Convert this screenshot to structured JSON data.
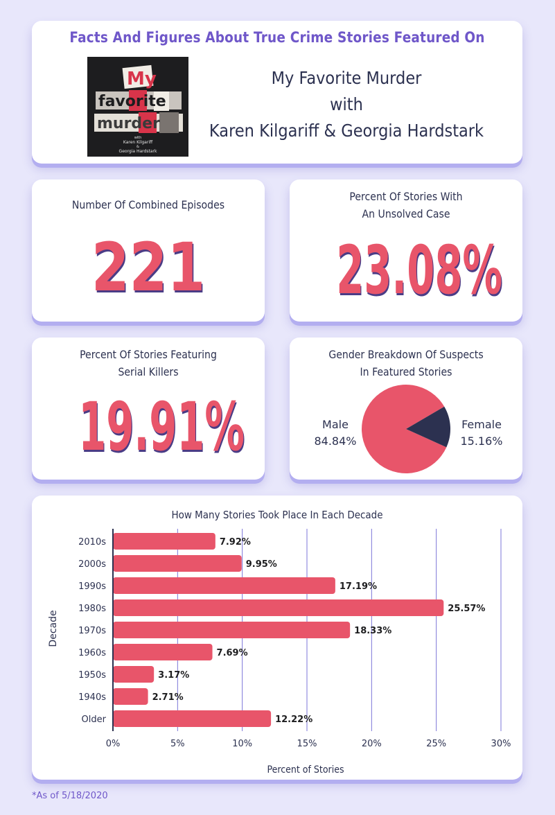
{
  "header": {
    "title": "Facts And Figures About True Crime Stories Featured On",
    "podcast_name": "My Favorite Murder",
    "with_text": "with",
    "hosts": "Karen Kilgariff & Georgia Hardstark",
    "logo": {
      "line1": "My",
      "line2": "favorite",
      "line3": "murder",
      "small_with": "with",
      "small_host1": "Karen Kilgariff",
      "small_amp": "&",
      "small_host2": "Georgia Hardstark"
    }
  },
  "stats": {
    "episodes": {
      "label": "Number Of Combined Episodes",
      "value": "221"
    },
    "unsolved": {
      "label_line1": "Percent Of Stories With",
      "label_line2": "An Unsolved Case",
      "value": "23.08%"
    },
    "serial": {
      "label_line1": "Percent Of Stories Featuring",
      "label_line2": "Serial Killers",
      "value": "19.91%"
    }
  },
  "gender": {
    "title_line1": "Gender Breakdown Of Suspects",
    "title_line2": "In Featured Stories",
    "male": {
      "name": "Male",
      "label": "84.84%",
      "value": 84.84
    },
    "female": {
      "name": "Female",
      "label": "15.16%",
      "value": 15.16
    },
    "colors": {
      "male": "#e8556a",
      "female": "#2c3150"
    }
  },
  "chart_data": {
    "type": "bar",
    "orientation": "horizontal",
    "title": "How Many Stories Took Place In Each Decade",
    "xlabel": "Percent of Stories",
    "ylabel": "Decade",
    "categories": [
      "2010s",
      "2000s",
      "1990s",
      "1980s",
      "1970s",
      "1960s",
      "1950s",
      "1940s",
      "Older"
    ],
    "values": [
      7.92,
      9.95,
      17.19,
      25.57,
      18.33,
      7.69,
      3.17,
      2.71,
      12.22
    ],
    "value_labels": [
      "7.92%",
      "9.95%",
      "17.19%",
      "25.57%",
      "18.33%",
      "7.69%",
      "3.17%",
      "2.71%",
      "12.22%"
    ],
    "xlim": [
      0,
      30
    ],
    "xticks": [
      0,
      5,
      10,
      15,
      20,
      25,
      30
    ],
    "xtick_labels": [
      "0%",
      "5%",
      "10%",
      "15%",
      "20%",
      "25%",
      "30%"
    ],
    "grid": "vertical",
    "bar_color": "#e8556a",
    "grid_color": "#7b74d8"
  },
  "footnote": "*As of 5/18/2020"
}
